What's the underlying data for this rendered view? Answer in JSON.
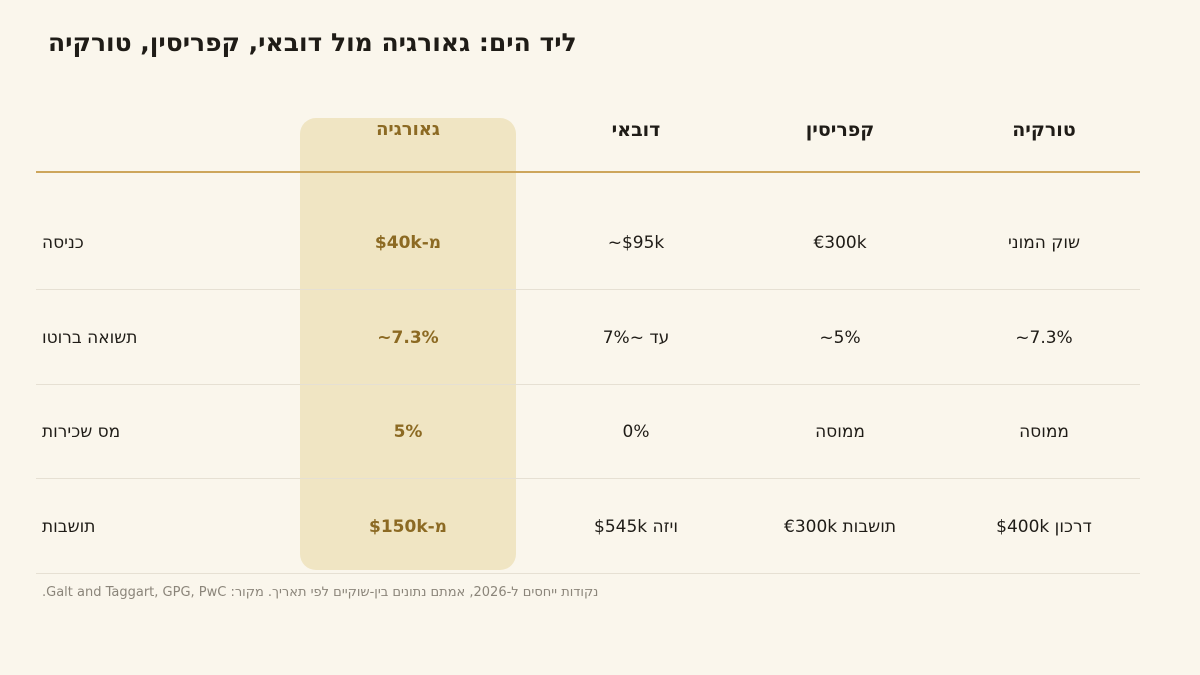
{
  "title": "היקרוט ,ןיסירפק ,יאבוד לומ היגרואג :םיה דיל",
  "columns": [
    {
      "label": "היגרואג",
      "highlighted": true
    },
    {
      "label": "יאבוד",
      "highlighted": false
    },
    {
      "label": "ןיסירפק",
      "highlighted": false
    },
    {
      "label": "היקרוט",
      "highlighted": false
    }
  ],
  "rows": [
    {
      "label": "הסינכ",
      "values": [
        "$40k-מ",
        "~$95k",
        "€300k",
        "ינומה קוש"
      ]
    },
    {
      "label": "וטורב האושת",
      "values": [
        "~7.3%",
        "7%~ דע",
        "~5%",
        "~7.3%"
      ]
    },
    {
      "label": "תוריכש סמ",
      "values": [
        "5%",
        "0%",
        "הסוממ",
        "הסוממ"
      ]
    },
    {
      "label": "תובשות",
      "values": [
        "$150k-מ",
        "$545k הזיו",
        "€300k תובשות",
        "$400k ןוכרד"
      ]
    }
  ],
  "footnote": ".Galt and Taggart, GPG, PwC :רוקמ .ךיראת יפל םייקוש-ןיב םינותנ םתמא ,2026-ל םיסחיי תודוקנ",
  "colors": {
    "background": "#faf6ec",
    "highlight_fill": "#f0e5c3",
    "highlight_text": "#8c6a23",
    "header_rule": "#cda65c",
    "row_rule": "#e6e0d3"
  }
}
